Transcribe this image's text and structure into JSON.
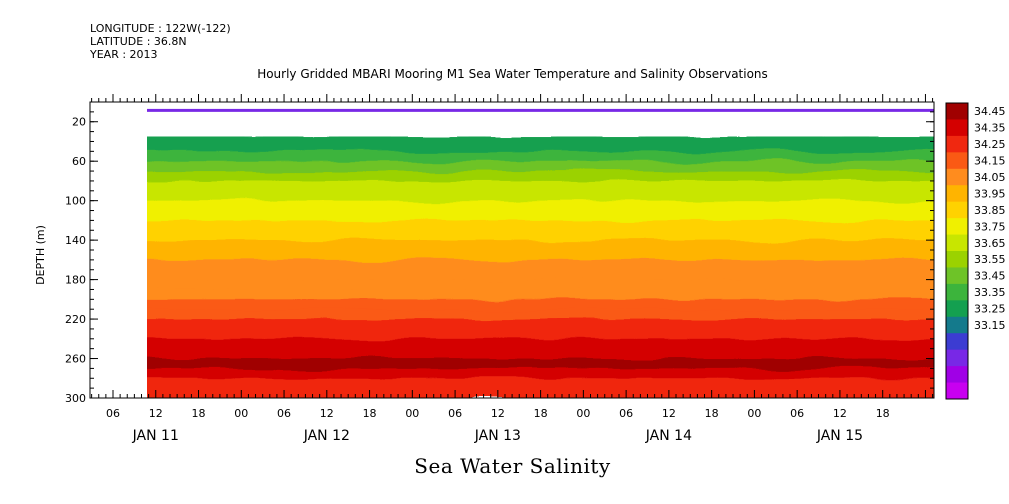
{
  "header_info": {
    "longitude": "LONGITUDE : 122W(-122)",
    "latitude": "LATITUDE : 36.8N",
    "year": "YEAR : 2013"
  },
  "chart_data": {
    "type": "heatmap",
    "title": "Hourly Gridded MBARI Mooring M1 Sea Water Temperature and Salinity Observations",
    "ylabel": "DEPTH (m)",
    "footer": "Sea Water Salinity",
    "ylim": [
      300,
      0
    ],
    "yticks": [
      "20",
      "60",
      "100",
      "140",
      "180",
      "220",
      "260",
      "300"
    ],
    "x_hour_labels": [
      "06",
      "12",
      "18",
      "00",
      "06",
      "12",
      "18",
      "00",
      "06",
      "12",
      "18",
      "00",
      "06",
      "12",
      "18",
      "00",
      "06",
      "12",
      "18"
    ],
    "x_day_labels": [
      "JAN 11",
      "JAN 12",
      "JAN 13",
      "JAN 14",
      "JAN 15"
    ],
    "colorbar_labels": [
      "34.45",
      "34.35",
      "34.25",
      "34.15",
      "34.05",
      "33.95",
      "33.85",
      "33.75",
      "33.65",
      "33.55",
      "33.45",
      "33.35",
      "33.25",
      "33.15"
    ],
    "colorbar_colors": [
      "#a00000",
      "#d40000",
      "#f02810",
      "#fa5a14",
      "#ff8c1e",
      "#ffb400",
      "#ffd200",
      "#f0f000",
      "#c8e600",
      "#9bd200",
      "#6ec328",
      "#3cb43c",
      "#14a050",
      "#147a8c",
      "#3c3cd2",
      "#7828e6",
      "#a000e6",
      "#c800f0"
    ],
    "data_start_hour_offset": 0,
    "surface_layer": {
      "depth_range": [
        7,
        10
      ],
      "value": 33.3
    },
    "profile": {
      "depths": [
        35,
        40,
        50,
        60,
        70,
        80,
        90,
        100,
        110,
        120,
        130,
        140,
        150,
        160,
        170,
        180,
        190,
        200,
        210,
        220,
        230,
        240,
        250,
        260,
        270,
        280,
        290,
        300
      ],
      "values": [
        33.52,
        33.58,
        33.64,
        33.7,
        33.76,
        33.82,
        33.86,
        33.9,
        33.94,
        33.98,
        34.0,
        34.04,
        34.08,
        34.1,
        34.12,
        34.14,
        34.16,
        34.2,
        34.22,
        34.26,
        34.3,
        34.34,
        34.36,
        34.38,
        34.32,
        34.28,
        34.24,
        34.2
      ]
    }
  }
}
